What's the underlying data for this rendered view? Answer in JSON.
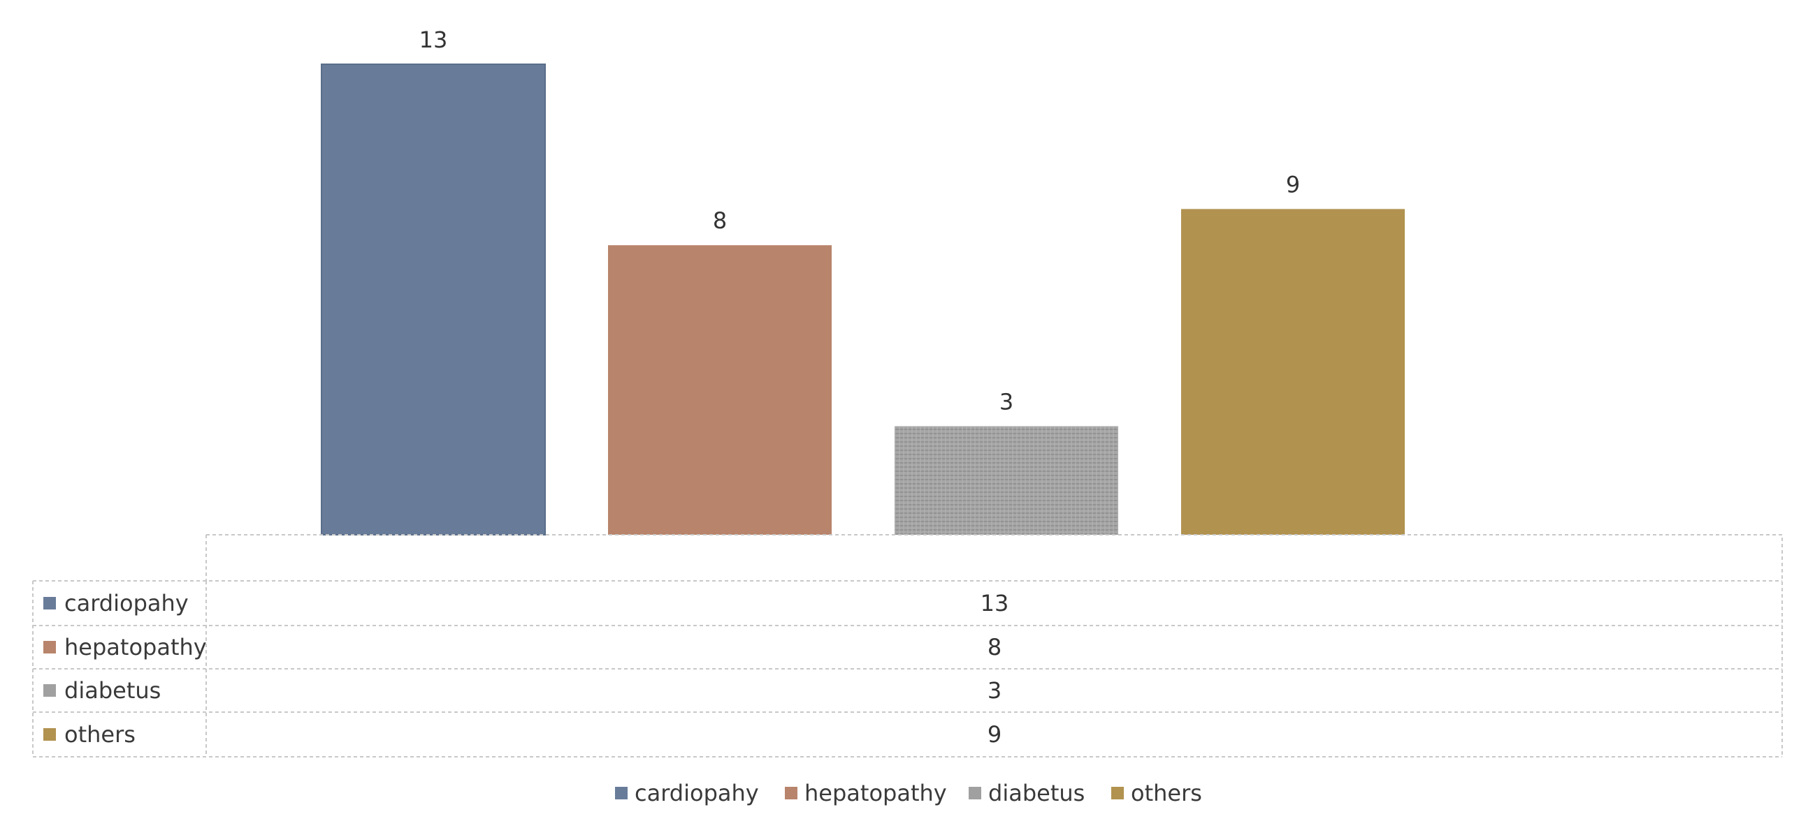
{
  "chart_data": {
    "type": "bar",
    "categories": [
      "cardiopahy",
      "hepatopathy",
      "diabetus",
      "others"
    ],
    "values": [
      13,
      8,
      3,
      9
    ],
    "colors": [
      "#687c99",
      "#b8846b",
      "#a0a0a0",
      "#b1924f"
    ],
    "data_labels": [
      "13",
      "8",
      "3",
      "9"
    ],
    "data_table": {
      "rows": [
        {
          "label": "cardiopahy",
          "value": "13"
        },
        {
          "label": "hepatopathy",
          "value": "8"
        },
        {
          "label": "diabetus",
          "value": "3"
        },
        {
          "label": "others",
          "value": "9"
        }
      ]
    },
    "legend": {
      "position": "bottom",
      "entries": [
        "cardiopahy",
        "hepatopathy",
        "diabetus",
        "others"
      ]
    },
    "ylim": [
      0,
      13
    ],
    "grid": false,
    "title": "",
    "xlabel": "",
    "ylabel": ""
  }
}
